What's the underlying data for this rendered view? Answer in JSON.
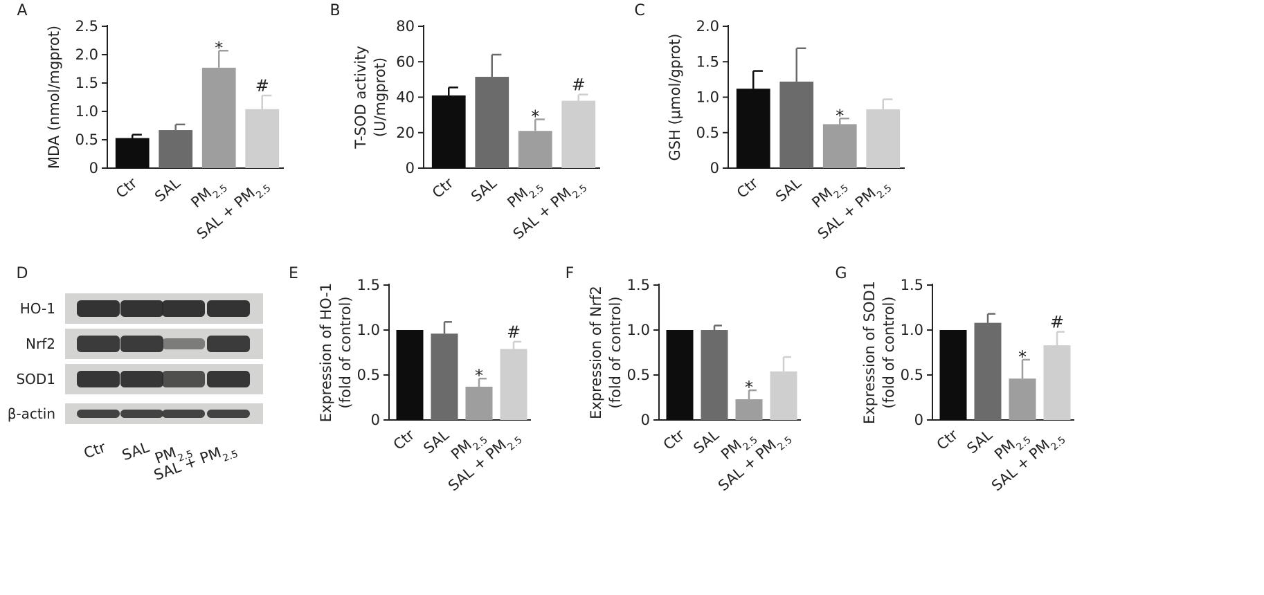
{
  "figure": {
    "panels": [
      "A",
      "B",
      "C",
      "D",
      "E",
      "F",
      "G"
    ],
    "bar_colors": [
      "#0d0d0d",
      "#6b6b6b",
      "#9e9e9e",
      "#cfcfcf"
    ],
    "blot": {
      "panel": "D",
      "rows": [
        "HO-1",
        "Nrf2",
        "SOD1",
        "β-actin"
      ],
      "lanes": [
        {
          "name": "Ctr"
        },
        {
          "name": "SAL"
        },
        {
          "name": "PM",
          "sub": "2.5"
        },
        {
          "name": "SAL + PM",
          "sub": "2.5"
        }
      ]
    }
  },
  "chart_data": [
    {
      "panel": "A",
      "type": "bar",
      "categories": [
        {
          "name": "Ctr"
        },
        {
          "name": "SAL"
        },
        {
          "name": "PM",
          "sub": "2.5"
        },
        {
          "name": "SAL + PM",
          "sub": "2.5"
        }
      ],
      "values": [
        0.53,
        0.67,
        1.77,
        1.04
      ],
      "errors": [
        0.06,
        0.1,
        0.3,
        0.24
      ],
      "annotations": [
        "",
        "",
        "*",
        "#"
      ],
      "ylabel": [
        "MDA (nmol/mgprot)"
      ],
      "yticks": [
        "0",
        "0.5",
        "1.0",
        "1.5",
        "2.0",
        "2.5"
      ],
      "ylim": [
        0,
        2.5
      ]
    },
    {
      "panel": "B",
      "type": "bar",
      "categories": [
        {
          "name": "Ctr"
        },
        {
          "name": "SAL"
        },
        {
          "name": "PM",
          "sub": "2.5"
        },
        {
          "name": "SAL + PM",
          "sub": "2.5"
        }
      ],
      "values": [
        41,
        51.5,
        21,
        38
      ],
      "errors": [
        4.5,
        12.5,
        6.5,
        3.5
      ],
      "annotations": [
        "",
        "",
        "*",
        "#"
      ],
      "ylabel": [
        "T-SOD activity",
        "(U/mgprot)"
      ],
      "yticks": [
        "0",
        "20",
        "40",
        "60",
        "80"
      ],
      "ylim": [
        0,
        80
      ]
    },
    {
      "panel": "C",
      "type": "bar",
      "categories": [
        {
          "name": "Ctr"
        },
        {
          "name": "SAL"
        },
        {
          "name": "PM",
          "sub": "2.5"
        },
        {
          "name": "SAL + PM",
          "sub": "2.5"
        }
      ],
      "values": [
        1.12,
        1.22,
        0.62,
        0.83
      ],
      "errors": [
        0.25,
        0.47,
        0.08,
        0.14
      ],
      "annotations": [
        "",
        "",
        "*",
        ""
      ],
      "ylabel": [
        "GSH (μmol/gprot)"
      ],
      "yticks": [
        "0",
        "0.5",
        "1.0",
        "1.5",
        "2.0"
      ],
      "ylim": [
        0,
        2.0
      ]
    },
    {
      "panel": "E",
      "type": "bar",
      "categories": [
        {
          "name": "Ctr"
        },
        {
          "name": "SAL"
        },
        {
          "name": "PM",
          "sub": "2.5"
        },
        {
          "name": "SAL + PM",
          "sub": "2.5"
        }
      ],
      "values": [
        1.0,
        0.96,
        0.37,
        0.79
      ],
      "errors": [
        0,
        0.13,
        0.09,
        0.08
      ],
      "annotations": [
        "",
        "",
        "*",
        "#"
      ],
      "ylabel": [
        "Expression of HO-1",
        "(fold of control)"
      ],
      "yticks": [
        "0",
        "0.5",
        "1.0",
        "1.5"
      ],
      "ylim": [
        0,
        1.5
      ]
    },
    {
      "panel": "F",
      "type": "bar",
      "categories": [
        {
          "name": "Ctr"
        },
        {
          "name": "SAL"
        },
        {
          "name": "PM",
          "sub": "2.5"
        },
        {
          "name": "SAL + PM",
          "sub": "2.5"
        }
      ],
      "values": [
        1.0,
        1.0,
        0.23,
        0.54
      ],
      "errors": [
        0,
        0.05,
        0.1,
        0.16
      ],
      "annotations": [
        "",
        "",
        "*",
        ""
      ],
      "ylabel": [
        "Expression of Nrf2",
        "(fold of control)"
      ],
      "yticks": [
        "0",
        "0.5",
        "1.0",
        "1.5"
      ],
      "ylim": [
        0,
        1.5
      ]
    },
    {
      "panel": "G",
      "type": "bar",
      "categories": [
        {
          "name": "Ctr"
        },
        {
          "name": "SAL"
        },
        {
          "name": "PM",
          "sub": "2.5"
        },
        {
          "name": "SAL + PM",
          "sub": "2.5"
        }
      ],
      "values": [
        1.0,
        1.08,
        0.46,
        0.83
      ],
      "errors": [
        0,
        0.1,
        0.21,
        0.15
      ],
      "annotations": [
        "",
        "",
        "*",
        "#"
      ],
      "ylabel": [
        "Expression of SOD1",
        "(fold of control)"
      ],
      "yticks": [
        "0",
        "0.5",
        "1.0",
        "1.5"
      ],
      "ylim": [
        0,
        1.5
      ]
    }
  ]
}
